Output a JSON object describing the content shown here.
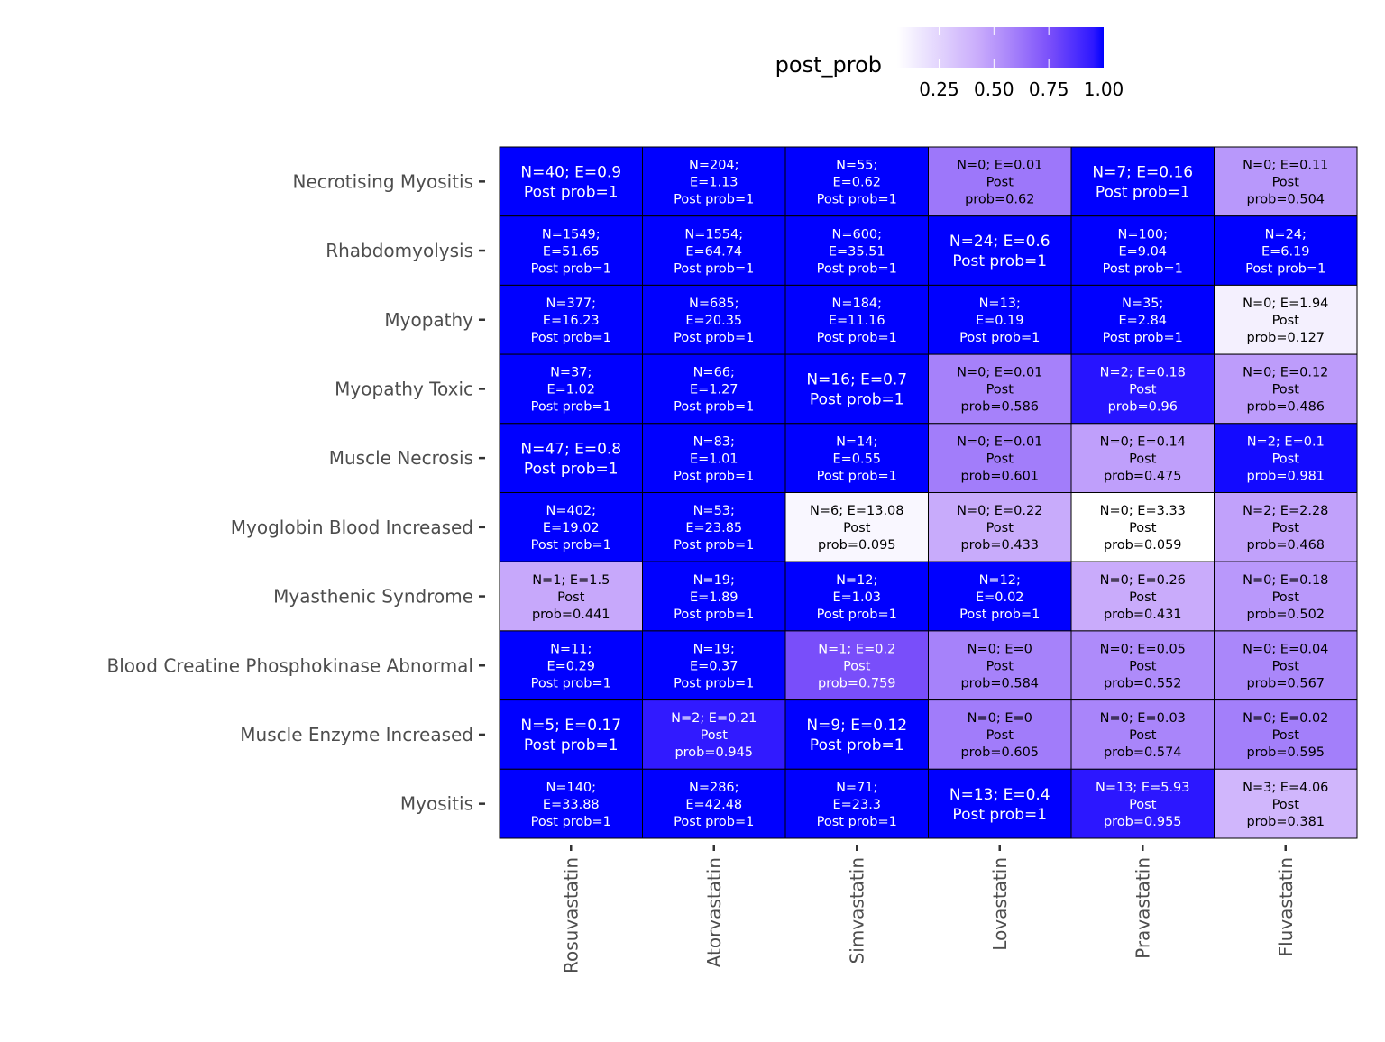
{
  "chart_data": {
    "type": "heatmap",
    "title": "",
    "xlabel": "",
    "ylabel": "",
    "legend": {
      "title": "post_prob",
      "position": "top",
      "ticks": [
        "0.25",
        "0.50",
        "0.75",
        "1.00"
      ],
      "tick_values": [
        0.25,
        0.5,
        0.75,
        1.0
      ],
      "range": [
        0.059,
        1.0
      ],
      "low_color": "#ffffff",
      "high_color": "#0000ff"
    },
    "x_categories": [
      "Rosuvastatin",
      "Atorvastatin",
      "Simvastatin",
      "Lovastatin",
      "Pravastatin",
      "Fluvastatin"
    ],
    "y_categories": [
      "Necrotising Myositis",
      "Rhabdomyolysis",
      "Myopathy",
      "Myopathy Toxic",
      "Muscle Necrosis",
      "Myoglobin Blood Increased",
      "Myasthenic Syndrome",
      "Blood Creatine Phosphokinase Abnormal",
      "Muscle Enzyme Increased",
      "Myositis"
    ],
    "cells": [
      [
        {
          "v": 1,
          "lines": [
            "N=40; E=0.9",
            "Post prob=1"
          ]
        },
        {
          "v": 1,
          "lines": [
            "N=204;",
            "E=1.13",
            "Post prob=1"
          ]
        },
        {
          "v": 1,
          "lines": [
            "N=55;",
            "E=0.62",
            "Post prob=1"
          ]
        },
        {
          "v": 0.62,
          "lines": [
            "N=0; E=0.01",
            "Post",
            "prob=0.62"
          ]
        },
        {
          "v": 1,
          "lines": [
            "N=7; E=0.16",
            "Post prob=1"
          ]
        },
        {
          "v": 0.504,
          "lines": [
            "N=0; E=0.11",
            "Post",
            "prob=0.504"
          ]
        }
      ],
      [
        {
          "v": 1,
          "lines": [
            "N=1549;",
            "E=51.65",
            "Post prob=1"
          ]
        },
        {
          "v": 1,
          "lines": [
            "N=1554;",
            "E=64.74",
            "Post prob=1"
          ]
        },
        {
          "v": 1,
          "lines": [
            "N=600;",
            "E=35.51",
            "Post prob=1"
          ]
        },
        {
          "v": 1,
          "lines": [
            "N=24; E=0.6",
            "Post prob=1"
          ]
        },
        {
          "v": 1,
          "lines": [
            "N=100;",
            "E=9.04",
            "Post prob=1"
          ]
        },
        {
          "v": 1,
          "lines": [
            "N=24;",
            "E=6.19",
            "Post prob=1"
          ]
        }
      ],
      [
        {
          "v": 1,
          "lines": [
            "N=377;",
            "E=16.23",
            "Post prob=1"
          ]
        },
        {
          "v": 1,
          "lines": [
            "N=685;",
            "E=20.35",
            "Post prob=1"
          ]
        },
        {
          "v": 1,
          "lines": [
            "N=184;",
            "E=11.16",
            "Post prob=1"
          ]
        },
        {
          "v": 1,
          "lines": [
            "N=13;",
            "E=0.19",
            "Post prob=1"
          ]
        },
        {
          "v": 1,
          "lines": [
            "N=35;",
            "E=2.84",
            "Post prob=1"
          ]
        },
        {
          "v": 0.127,
          "lines": [
            "N=0; E=1.94",
            "Post",
            "prob=0.127"
          ]
        }
      ],
      [
        {
          "v": 1,
          "lines": [
            "N=37;",
            "E=1.02",
            "Post prob=1"
          ]
        },
        {
          "v": 1,
          "lines": [
            "N=66;",
            "E=1.27",
            "Post prob=1"
          ]
        },
        {
          "v": 1,
          "lines": [
            "N=16; E=0.7",
            "Post prob=1"
          ]
        },
        {
          "v": 0.586,
          "lines": [
            "N=0; E=0.01",
            "Post",
            "prob=0.586"
          ]
        },
        {
          "v": 0.96,
          "lines": [
            "N=2; E=0.18",
            "Post",
            "prob=0.96"
          ]
        },
        {
          "v": 0.486,
          "lines": [
            "N=0; E=0.12",
            "Post",
            "prob=0.486"
          ]
        }
      ],
      [
        {
          "v": 1,
          "lines": [
            "N=47; E=0.8",
            "Post prob=1"
          ]
        },
        {
          "v": 1,
          "lines": [
            "N=83;",
            "E=1.01",
            "Post prob=1"
          ]
        },
        {
          "v": 1,
          "lines": [
            "N=14;",
            "E=0.55",
            "Post prob=1"
          ]
        },
        {
          "v": 0.601,
          "lines": [
            "N=0; E=0.01",
            "Post",
            "prob=0.601"
          ]
        },
        {
          "v": 0.475,
          "lines": [
            "N=0; E=0.14",
            "Post",
            "prob=0.475"
          ]
        },
        {
          "v": 0.981,
          "lines": [
            "N=2; E=0.1",
            "Post",
            "prob=0.981"
          ]
        }
      ],
      [
        {
          "v": 1,
          "lines": [
            "N=402;",
            "E=19.02",
            "Post prob=1"
          ]
        },
        {
          "v": 1,
          "lines": [
            "N=53;",
            "E=23.85",
            "Post prob=1"
          ]
        },
        {
          "v": 0.095,
          "lines": [
            "N=6; E=13.08",
            "Post",
            "prob=0.095"
          ]
        },
        {
          "v": 0.433,
          "lines": [
            "N=0; E=0.22",
            "Post",
            "prob=0.433"
          ]
        },
        {
          "v": 0.059,
          "lines": [
            "N=0; E=3.33",
            "Post",
            "prob=0.059"
          ]
        },
        {
          "v": 0.468,
          "lines": [
            "N=2; E=2.28",
            "Post",
            "prob=0.468"
          ]
        }
      ],
      [
        {
          "v": 0.441,
          "lines": [
            "N=1; E=1.5",
            "Post",
            "prob=0.441"
          ]
        },
        {
          "v": 1,
          "lines": [
            "N=19;",
            "E=1.89",
            "Post prob=1"
          ]
        },
        {
          "v": 1,
          "lines": [
            "N=12;",
            "E=1.03",
            "Post prob=1"
          ]
        },
        {
          "v": 1,
          "lines": [
            "N=12;",
            "E=0.02",
            "Post prob=1"
          ]
        },
        {
          "v": 0.431,
          "lines": [
            "N=0; E=0.26",
            "Post",
            "prob=0.431"
          ]
        },
        {
          "v": 0.502,
          "lines": [
            "N=0; E=0.18",
            "Post",
            "prob=0.502"
          ]
        }
      ],
      [
        {
          "v": 1,
          "lines": [
            "N=11;",
            "E=0.29",
            "Post prob=1"
          ]
        },
        {
          "v": 1,
          "lines": [
            "N=19;",
            "E=0.37",
            "Post prob=1"
          ]
        },
        {
          "v": 0.759,
          "lines": [
            "N=1; E=0.2",
            "Post",
            "prob=0.759"
          ]
        },
        {
          "v": 0.584,
          "lines": [
            "N=0; E=0",
            "Post",
            "prob=0.584"
          ]
        },
        {
          "v": 0.552,
          "lines": [
            "N=0; E=0.05",
            "Post",
            "prob=0.552"
          ]
        },
        {
          "v": 0.567,
          "lines": [
            "N=0; E=0.04",
            "Post",
            "prob=0.567"
          ]
        }
      ],
      [
        {
          "v": 1,
          "lines": [
            "N=5; E=0.17",
            "Post prob=1"
          ]
        },
        {
          "v": 0.945,
          "lines": [
            "N=2; E=0.21",
            "Post",
            "prob=0.945"
          ]
        },
        {
          "v": 1,
          "lines": [
            "N=9; E=0.12",
            "Post prob=1"
          ]
        },
        {
          "v": 0.605,
          "lines": [
            "N=0; E=0",
            "Post",
            "prob=0.605"
          ]
        },
        {
          "v": 0.574,
          "lines": [
            "N=0; E=0.03",
            "Post",
            "prob=0.574"
          ]
        },
        {
          "v": 0.595,
          "lines": [
            "N=0; E=0.02",
            "Post",
            "prob=0.595"
          ]
        }
      ],
      [
        {
          "v": 1,
          "lines": [
            "N=140;",
            "E=33.88",
            "Post prob=1"
          ]
        },
        {
          "v": 1,
          "lines": [
            "N=286;",
            "E=42.48",
            "Post prob=1"
          ]
        },
        {
          "v": 1,
          "lines": [
            "N=71;",
            "E=23.3",
            "Post prob=1"
          ]
        },
        {
          "v": 1,
          "lines": [
            "N=13; E=0.4",
            "Post prob=1"
          ]
        },
        {
          "v": 0.955,
          "lines": [
            "N=13; E=5.93",
            "Post",
            "prob=0.955"
          ]
        },
        {
          "v": 0.381,
          "lines": [
            "N=3; E=4.06",
            "Post",
            "prob=0.381"
          ]
        }
      ]
    ]
  }
}
